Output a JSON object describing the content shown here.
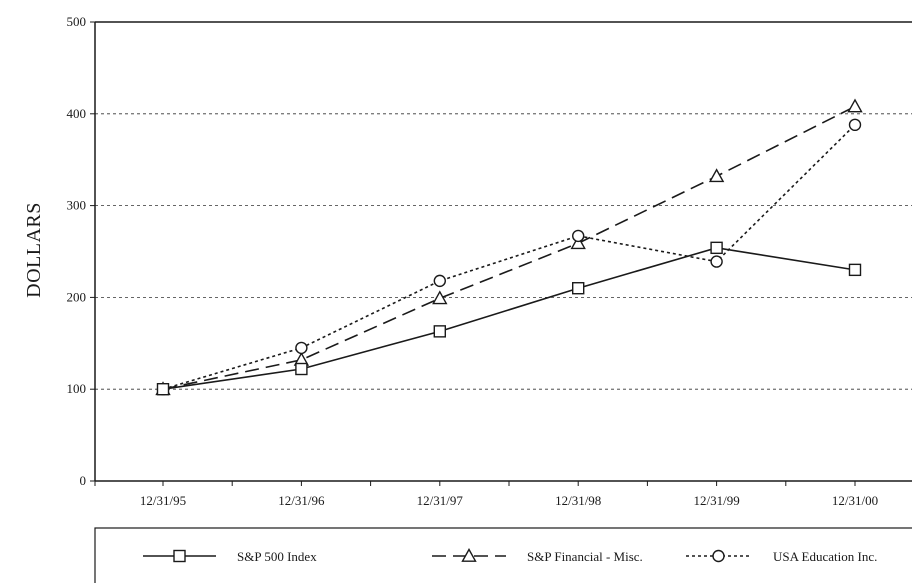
{
  "chart_data": {
    "type": "line",
    "title": "",
    "xlabel": "",
    "ylabel": "DOLLARS",
    "categories": [
      "12/31/95",
      "12/31/96",
      "12/31/97",
      "12/31/98",
      "12/31/99",
      "12/31/00"
    ],
    "ylim": [
      0,
      500
    ],
    "yticks": [
      0,
      100,
      200,
      300,
      400,
      500
    ],
    "grid": "horizontal dotted",
    "legend_position": "bottom",
    "series": [
      {
        "name": "S&P 500 Index",
        "values": [
          100,
          122,
          163,
          210,
          254,
          230
        ],
        "line_style": "solid",
        "marker": "square",
        "color": "#1a1a1a"
      },
      {
        "name": "S&P Financial - Misc.",
        "values": [
          100,
          132,
          199,
          259,
          332,
          408
        ],
        "line_style": "dashed",
        "marker": "triangle",
        "color": "#1a1a1a"
      },
      {
        "name": "USA Education Inc.",
        "values": [
          100,
          145,
          218,
          267,
          239,
          388
        ],
        "line_style": "dotted",
        "marker": "circle",
        "color": "#1a1a1a"
      }
    ]
  }
}
